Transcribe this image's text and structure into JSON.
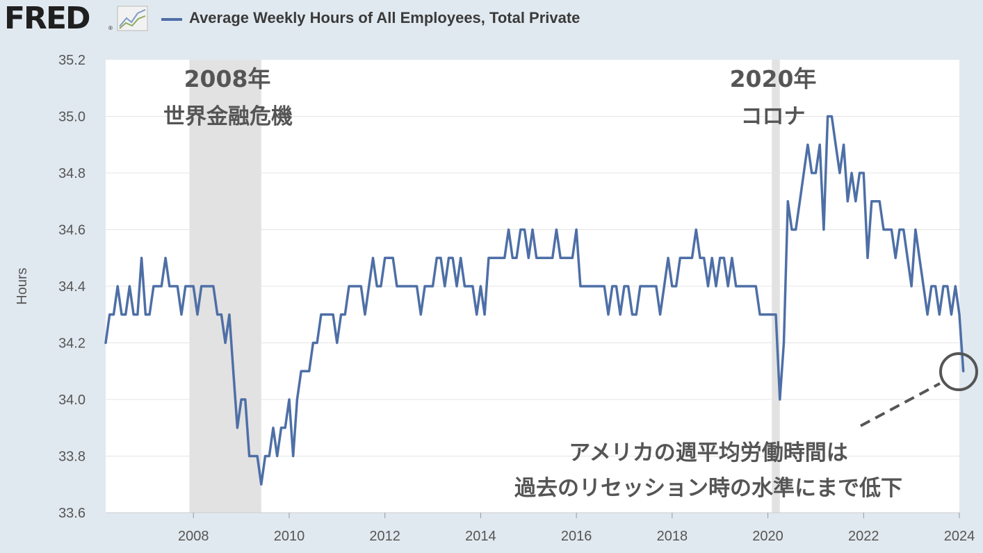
{
  "header": {
    "logo_text": "FRED",
    "logo_reg": "®",
    "logo_icon": "line-chart-icon",
    "legend_label": "Average Weekly Hours of All Employees, Total Private"
  },
  "annotations": {
    "recession1_year": "2008年",
    "recession1_name": "世界金融危機",
    "recession2_year": "2020年",
    "recession2_name": "コロナ",
    "note_line1": "アメリカの週平均労働時間は",
    "note_line2": "過去のリセッション時の水準にまで低下"
  },
  "chart_data": {
    "type": "line",
    "title": "Average Weekly Hours of All Employees, Total Private",
    "xlabel": "",
    "ylabel": "Hours",
    "xlim": [
      "2006-03",
      "2024-01"
    ],
    "ylim": [
      33.6,
      35.2
    ],
    "yticks": [
      "33.6",
      "33.8",
      "34.0",
      "34.2",
      "34.4",
      "34.6",
      "34.8",
      "35.0",
      "35.2"
    ],
    "xticks": [
      "2008",
      "2010",
      "2012",
      "2014",
      "2016",
      "2018",
      "2020",
      "2022",
      "2024"
    ],
    "grid": "horizontal",
    "recessions": [
      {
        "start": "2007-12",
        "end": "2009-06"
      },
      {
        "start": "2020-02",
        "end": "2020-04"
      }
    ],
    "series": [
      {
        "name": "Average Weekly Hours of All Employees, Total Private",
        "color": "#4e6fa6",
        "start": "2006-03",
        "frequency": "monthly",
        "values": [
          34.2,
          34.3,
          34.3,
          34.4,
          34.3,
          34.3,
          34.4,
          34.3,
          34.3,
          34.5,
          34.3,
          34.3,
          34.4,
          34.4,
          34.4,
          34.5,
          34.4,
          34.4,
          34.4,
          34.3,
          34.4,
          34.4,
          34.4,
          34.3,
          34.4,
          34.4,
          34.4,
          34.4,
          34.3,
          34.3,
          34.2,
          34.3,
          34.1,
          33.9,
          34.0,
          34.0,
          33.8,
          33.8,
          33.8,
          33.7,
          33.8,
          33.8,
          33.9,
          33.8,
          33.9,
          33.9,
          34.0,
          33.8,
          34.0,
          34.1,
          34.1,
          34.1,
          34.2,
          34.2,
          34.3,
          34.3,
          34.3,
          34.3,
          34.2,
          34.3,
          34.3,
          34.4,
          34.4,
          34.4,
          34.4,
          34.3,
          34.4,
          34.5,
          34.4,
          34.4,
          34.5,
          34.5,
          34.5,
          34.4,
          34.4,
          34.4,
          34.4,
          34.4,
          34.4,
          34.3,
          34.4,
          34.4,
          34.4,
          34.5,
          34.5,
          34.4,
          34.5,
          34.5,
          34.4,
          34.5,
          34.4,
          34.4,
          34.4,
          34.3,
          34.4,
          34.3,
          34.5,
          34.5,
          34.5,
          34.5,
          34.5,
          34.6,
          34.5,
          34.5,
          34.6,
          34.6,
          34.5,
          34.6,
          34.5,
          34.5,
          34.5,
          34.5,
          34.5,
          34.6,
          34.5,
          34.5,
          34.5,
          34.5,
          34.6,
          34.4,
          34.4,
          34.4,
          34.4,
          34.4,
          34.4,
          34.4,
          34.3,
          34.4,
          34.4,
          34.3,
          34.4,
          34.4,
          34.3,
          34.3,
          34.4,
          34.4,
          34.4,
          34.4,
          34.4,
          34.3,
          34.4,
          34.5,
          34.4,
          34.4,
          34.5,
          34.5,
          34.5,
          34.5,
          34.6,
          34.5,
          34.5,
          34.4,
          34.5,
          34.4,
          34.5,
          34.5,
          34.4,
          34.5,
          34.4,
          34.4,
          34.4,
          34.4,
          34.4,
          34.4,
          34.3,
          34.3,
          34.3,
          34.3,
          34.3,
          34.0,
          34.2,
          34.7,
          34.6,
          34.6,
          34.7,
          34.8,
          34.9,
          34.8,
          34.8,
          34.9,
          34.6,
          35.0,
          35.0,
          34.9,
          34.8,
          34.9,
          34.7,
          34.8,
          34.7,
          34.8,
          34.8,
          34.5,
          34.7,
          34.7,
          34.7,
          34.6,
          34.6,
          34.6,
          34.5,
          34.6,
          34.6,
          34.5,
          34.4,
          34.6,
          34.5,
          34.4,
          34.3,
          34.4,
          34.4,
          34.3,
          34.4,
          34.4,
          34.3,
          34.4,
          34.3,
          34.1
        ]
      }
    ]
  }
}
